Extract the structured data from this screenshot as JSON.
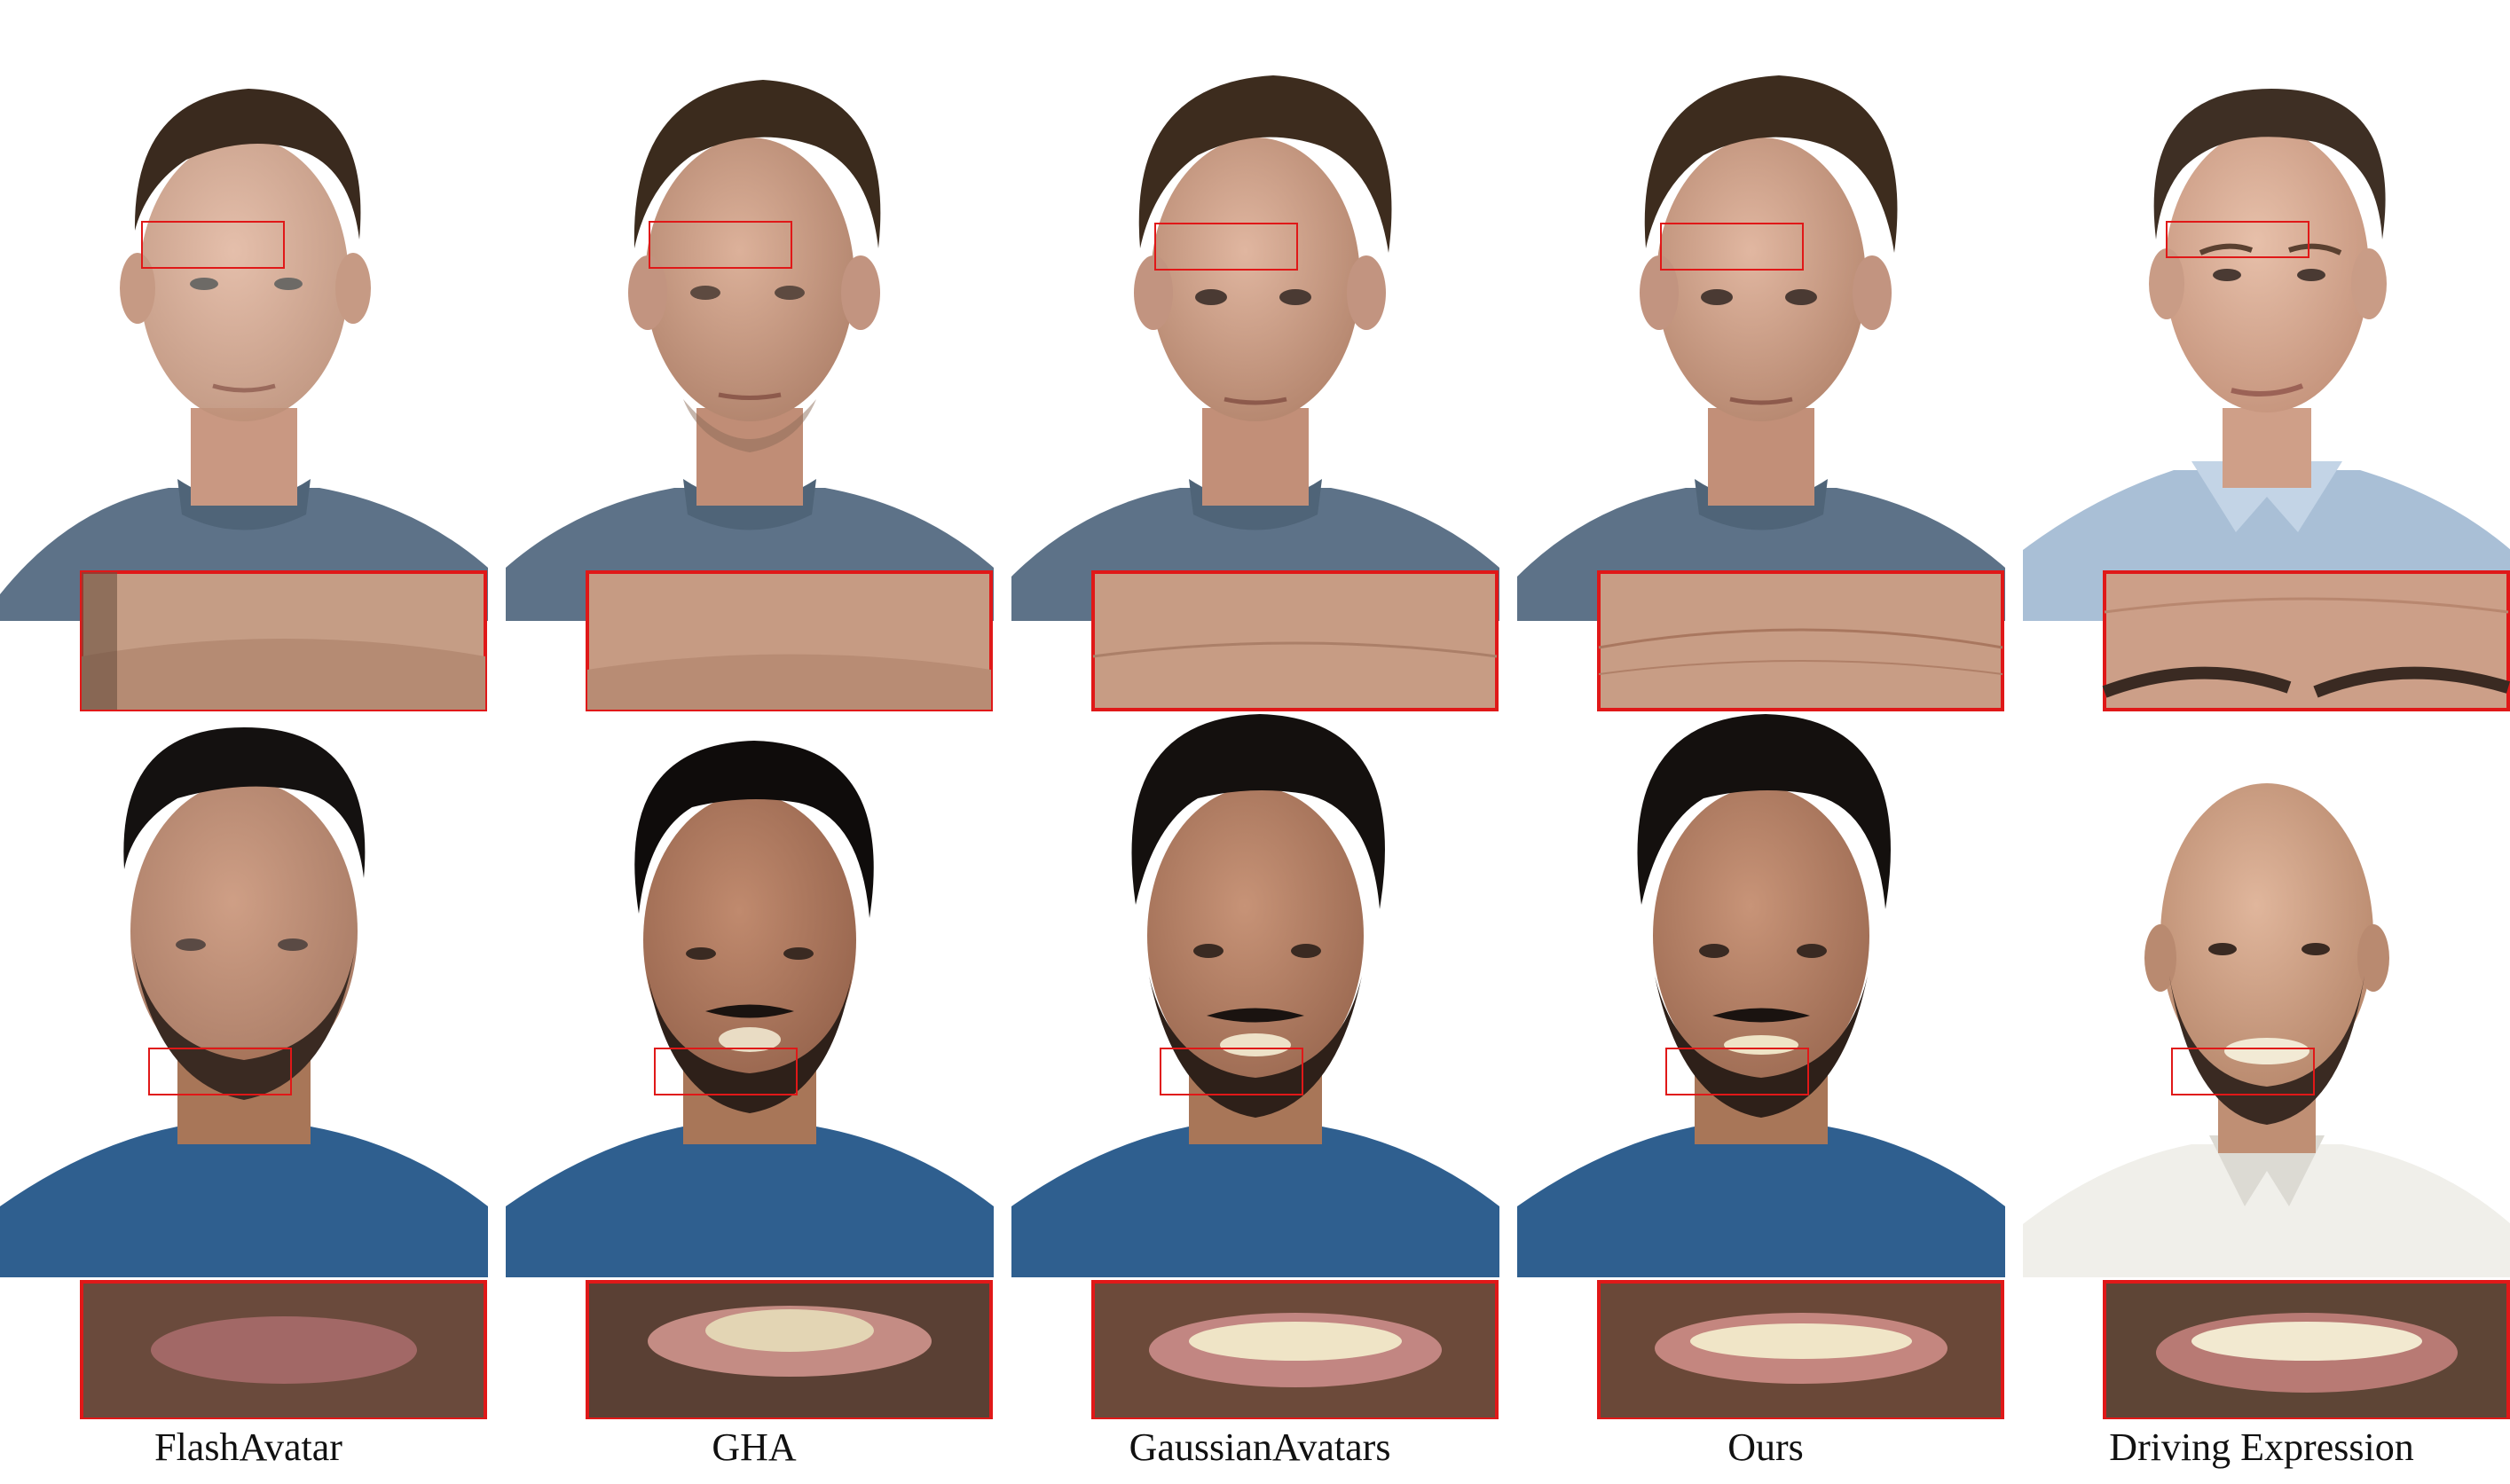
{
  "figure": {
    "columns": [
      {
        "label": "FlashAvatar"
      },
      {
        "label": "GHA"
      },
      {
        "label": "GaussianAvatars"
      },
      {
        "label": "Ours"
      },
      {
        "label": "Driving Expression"
      }
    ],
    "rows": [
      {
        "subject": "short-curly-brown-hair",
        "zoom_region": "forehead"
      },
      {
        "subject": "black-hair-beard",
        "zoom_region": "mouth"
      }
    ],
    "colors": {
      "highlight_box": "#e01818",
      "background": "#ffffff",
      "shirt_row1": "#5d7288",
      "shirt_row2": "#2f5f8f",
      "shirt_row1_driving": "#a9bfd6",
      "shirt_row2_driving": "#f0efea"
    }
  }
}
